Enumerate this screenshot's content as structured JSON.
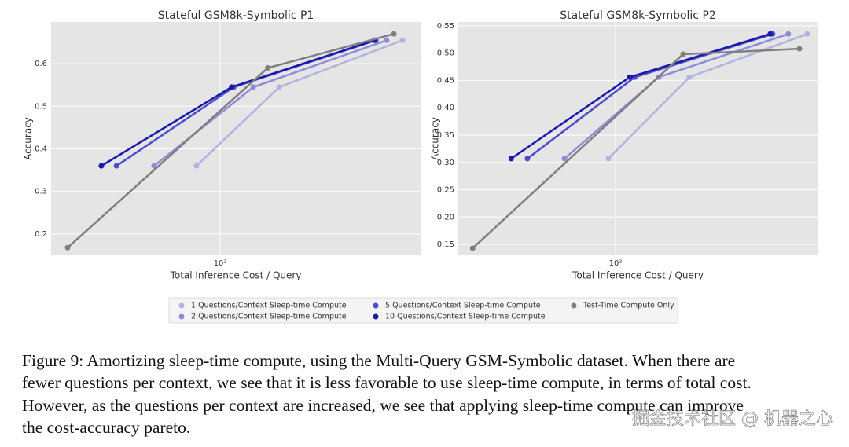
{
  "chart_data": [
    {
      "type": "line",
      "title": "Stateful GSM8k-Symbolic P1",
      "xlabel": "Total Inference Cost / Query",
      "ylabel": "Accuracy",
      "xscale": "log",
      "grid": true,
      "xlim": [
        24.3,
        535
      ],
      "xticks": [
        {
          "value": 100,
          "label": "10²"
        }
      ],
      "ylim": [
        0.15,
        0.698
      ],
      "yticks": [
        0.2,
        0.3,
        0.4,
        0.5,
        0.6
      ],
      "series": [
        {
          "name": "1 Questions/Context Sleep-time Compute",
          "color": "#b3b3e0",
          "x": [
            82,
            164,
            460
          ],
          "values": [
            0.36,
            0.545,
            0.655
          ]
        },
        {
          "name": "2 Questions/Context Sleep-time Compute",
          "color": "#8c8cd9",
          "x": [
            57.5,
            132,
            403
          ],
          "values": [
            0.36,
            0.545,
            0.655
          ]
        },
        {
          "name": "5 Questions/Context Sleep-time Compute",
          "color": "#4d4dcc",
          "x": [
            42,
            112,
            368
          ],
          "values": [
            0.36,
            0.545,
            0.655
          ]
        },
        {
          "name": "10 Questions/Context Sleep-time Compute",
          "color": "#1a1aaa",
          "x": [
            37,
            110,
            364
          ],
          "values": [
            0.36,
            0.545,
            0.655
          ]
        },
        {
          "name": "Test-Time Compute Only",
          "color": "#7f7f7f",
          "x": [
            27.9,
            149,
            428
          ],
          "values": [
            0.168,
            0.59,
            0.67
          ]
        }
      ]
    },
    {
      "type": "line",
      "title": "Stateful GSM8k-Symbolic P2",
      "xlabel": "Total Inference Cost / Query",
      "ylabel": "Accuracy",
      "xscale": "log",
      "grid": true,
      "xlim": [
        25.8,
        570
      ],
      "xticks": [
        {
          "value": 100,
          "label": "10²"
        }
      ],
      "ylim": [
        0.13,
        0.557
      ],
      "yticks": [
        0.15,
        {
          "value": 0.2,
          "label": "0.20"
        },
        0.25,
        {
          "value": 0.3,
          "label": "0.30"
        },
        0.35,
        {
          "value": 0.4,
          "label": "0.40"
        },
        0.45,
        {
          "value": 0.5,
          "label": "0.50"
        },
        0.55
      ],
      "series": [
        {
          "color": "#b3b3e0",
          "x": [
            94,
            189,
            521
          ],
          "values": [
            0.307,
            0.456,
            0.535
          ]
        },
        {
          "color": "#8c8cd9",
          "x": [
            64.4,
            145,
            443
          ],
          "values": [
            0.307,
            0.456,
            0.535
          ]
        },
        {
          "color": "#4d4dcc",
          "x": [
            46.8,
            118,
            387
          ],
          "values": [
            0.307,
            0.456,
            0.535
          ]
        },
        {
          "color": "#1a1aaa",
          "x": [
            40.7,
            113,
            379
          ],
          "values": [
            0.307,
            0.456,
            0.535
          ]
        },
        {
          "color": "#7f7f7f",
          "x": [
            29.2,
            179,
            488
          ],
          "values": [
            0.143,
            0.498,
            0.508
          ]
        }
      ]
    }
  ],
  "caption": [
    "Figure 9: Amortizing sleep-time compute, using the Multi-Query GSM-Symbolic dataset. When there are",
    "fewer questions per context, we see that it is less favorable to use sleep-time compute, in terms of total cost.",
    "However, as the questions per context are increased, we see that applying sleep-time compute can improve",
    "the cost-accuracy pareto."
  ],
  "watermark": "掘金技术社区 @ 机器之心"
}
